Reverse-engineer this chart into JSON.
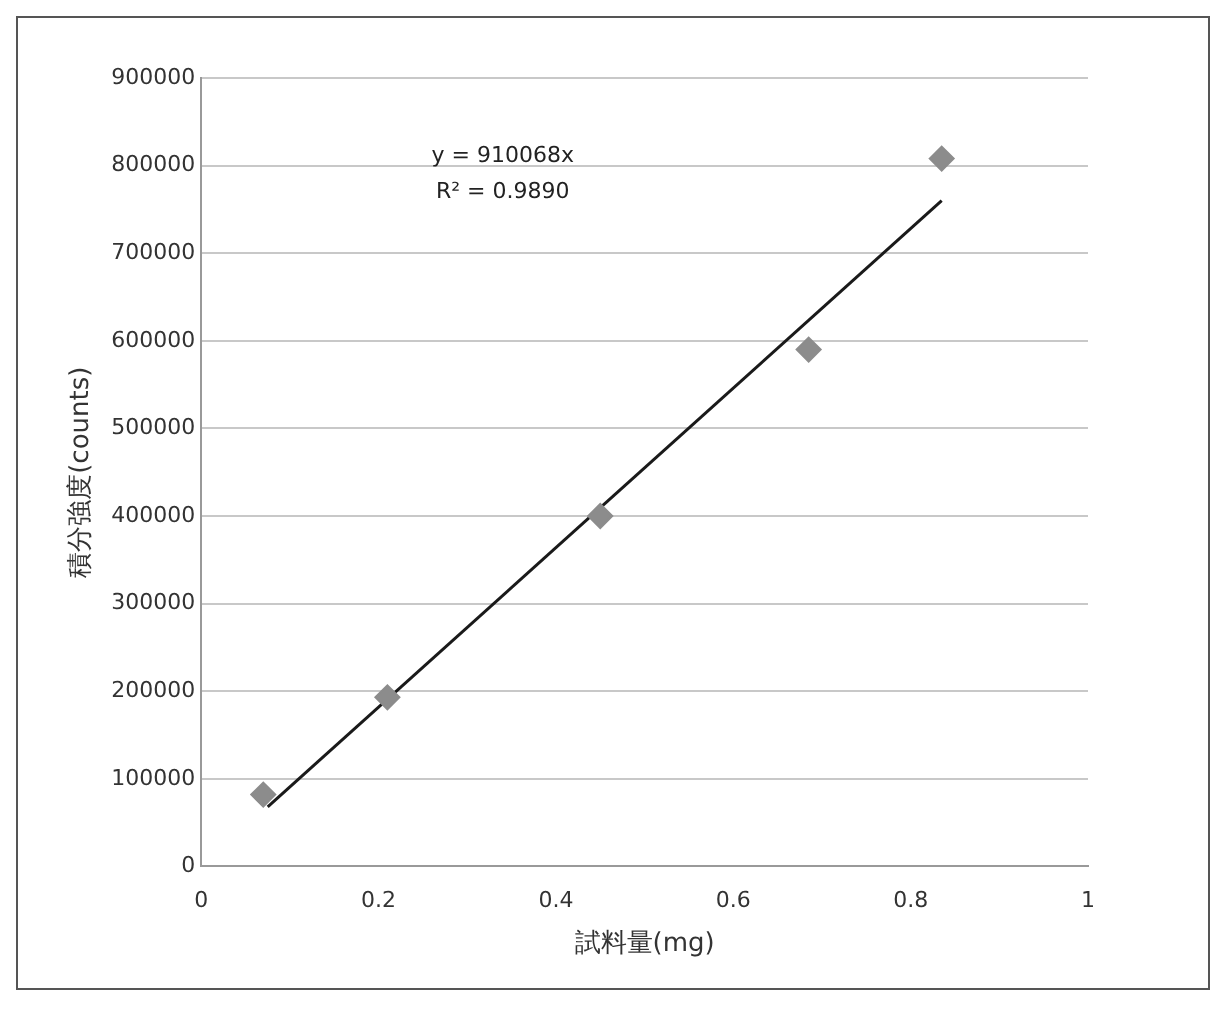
{
  "chart_data": {
    "type": "scatter",
    "xlabel": "試料量(mg)",
    "ylabel": "積分強度(counts)",
    "xlim": [
      0,
      1
    ],
    "xticks": [
      0,
      0.2,
      0.4,
      0.6,
      0.8,
      1
    ],
    "ylim": [
      0,
      900000
    ],
    "yticks": [
      0,
      100000,
      200000,
      300000,
      400000,
      500000,
      600000,
      700000,
      800000,
      900000
    ],
    "grid": "y",
    "legend": false,
    "marker": "diamond",
    "series": [
      {
        "type": "scatter",
        "color": "#8c8c8c",
        "x": [
          0.07,
          0.21,
          0.45,
          0.685,
          0.835
        ],
        "values": [
          82000,
          193000,
          400000,
          590000,
          808000
        ]
      },
      {
        "type": "line",
        "color": "#1a1a1a",
        "marker": "none",
        "x": [
          0.075,
          0.835
        ],
        "values": [
          68000,
          760000
        ]
      }
    ],
    "annotations": [
      "y = 910068x",
      "R² = 0.9890"
    ]
  }
}
